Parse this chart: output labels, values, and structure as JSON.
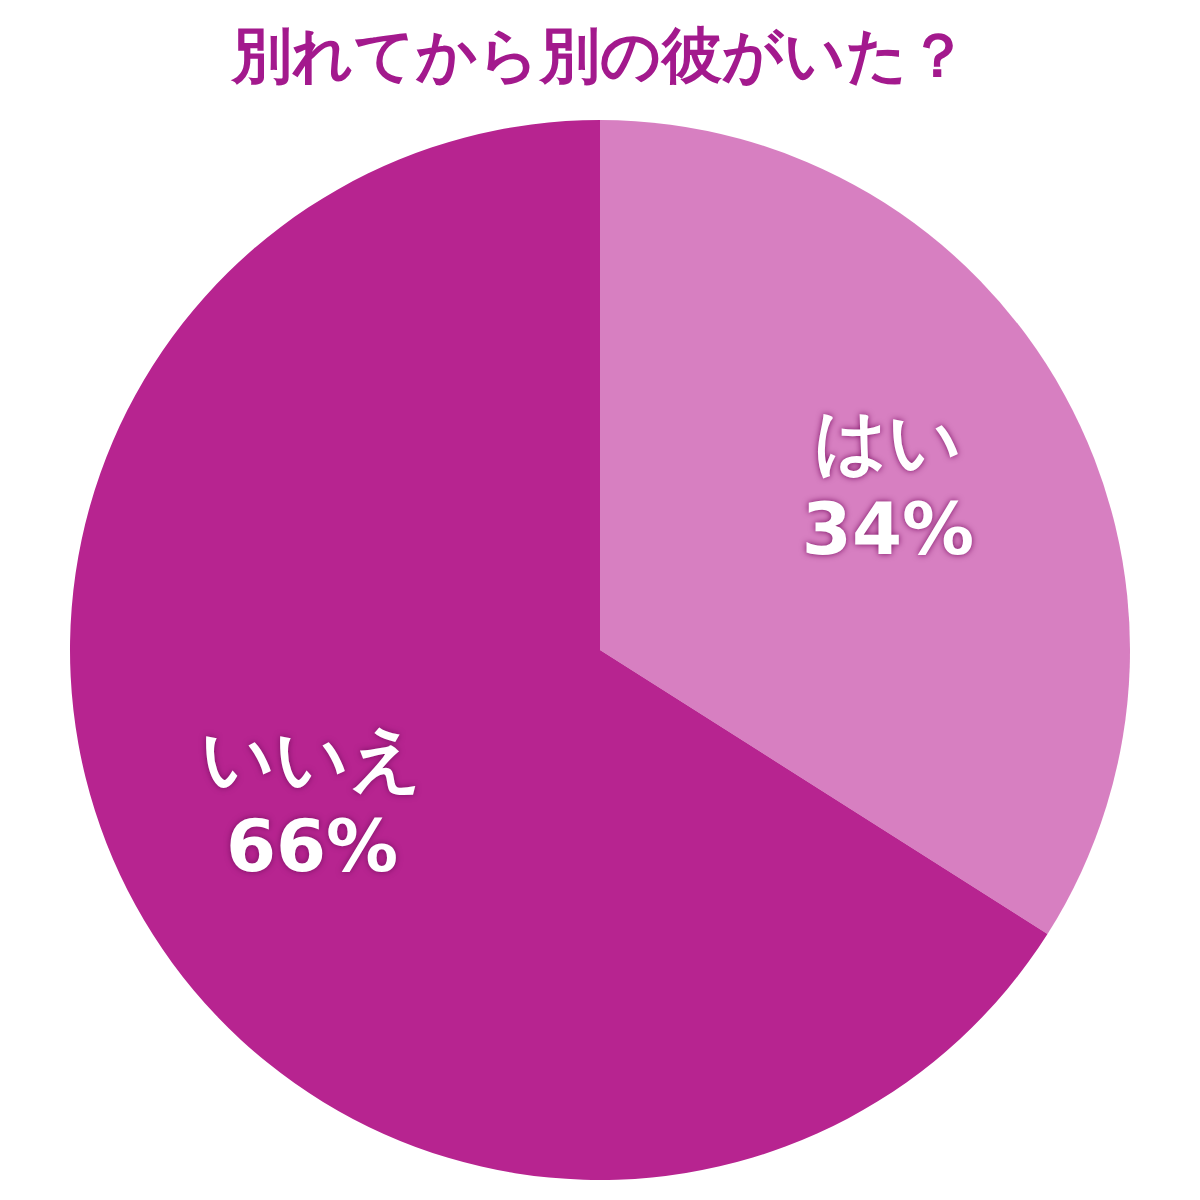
{
  "chart_data": {
    "type": "pie",
    "title": "別れてから別の彼がいた？",
    "categories": [
      "はい",
      "いいえ"
    ],
    "values": [
      34,
      66
    ],
    "colors": [
      "#d77fc1",
      "#b72490"
    ],
    "value_labels": [
      "34%",
      "66%"
    ],
    "legend": false
  }
}
